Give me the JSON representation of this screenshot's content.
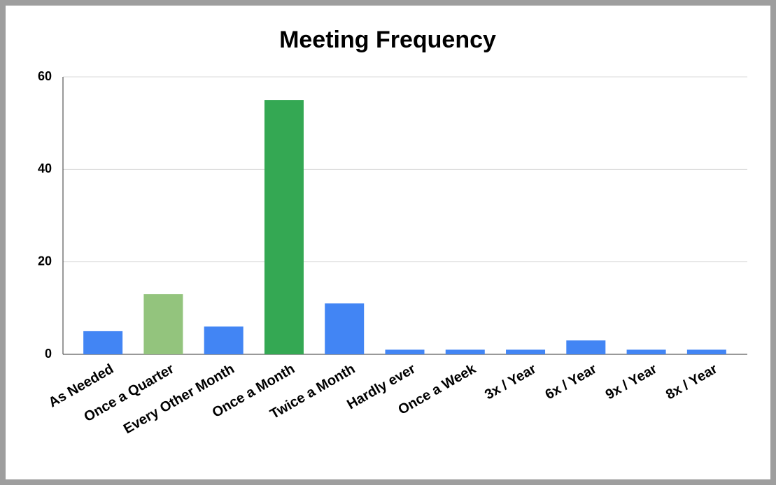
{
  "chart_data": {
    "type": "bar",
    "title": "Meeting Frequency",
    "categories": [
      "As Needed",
      "Once a Quarter",
      "Every Other Month",
      "Once a Month",
      "Twice a Month",
      "Hardly ever",
      "Once a Week",
      "3x / Year",
      "6x / Year",
      "9x / Year",
      "8x / Year"
    ],
    "values": [
      5,
      13,
      6,
      55,
      11,
      1,
      1,
      1,
      3,
      1,
      1
    ],
    "colors": [
      "#4285f4",
      "#93c47d",
      "#4285f4",
      "#34a853",
      "#4285f4",
      "#4285f4",
      "#4285f4",
      "#4285f4",
      "#4285f4",
      "#4285f4",
      "#4285f4"
    ],
    "ylim": [
      0,
      60
    ],
    "yticks": [
      0,
      20,
      40,
      60
    ],
    "grid": true
  }
}
